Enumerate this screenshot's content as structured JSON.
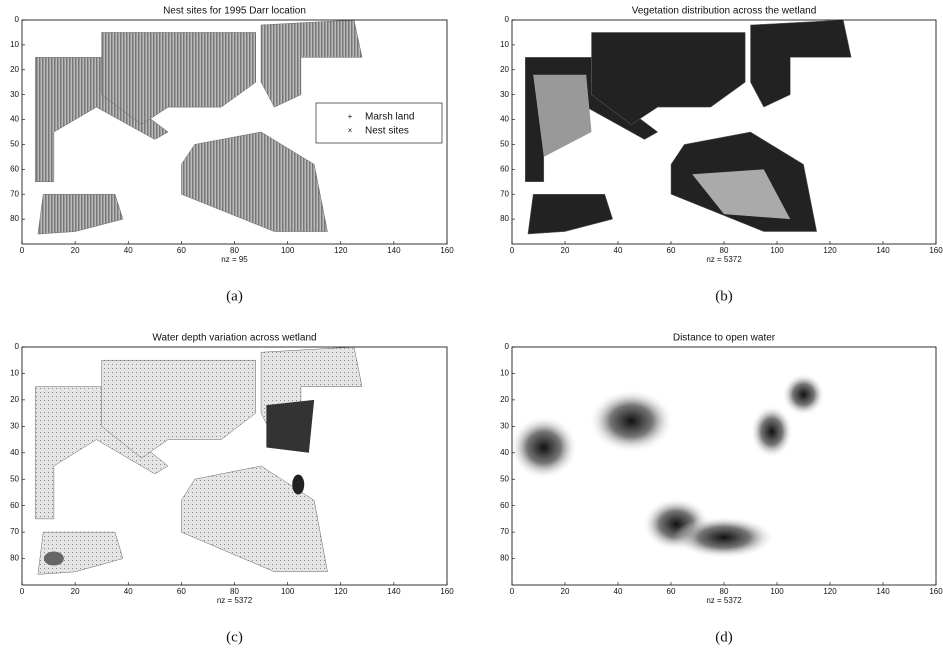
{
  "chart_data": [
    {
      "type": "spy",
      "title": "Nest sites for 1995 Darr location",
      "xlabel": "nz = 95",
      "caption": "(a)",
      "legend": [
        "Marsh land",
        "Nest sites"
      ],
      "xlim": [
        0,
        160
      ],
      "ylim": [
        0,
        90
      ],
      "y_reversed": true,
      "xticks": [
        0,
        20,
        40,
        60,
        80,
        100,
        120,
        140,
        160
      ],
      "yticks": [
        0,
        10,
        20,
        30,
        40,
        50,
        60,
        70,
        80
      ]
    },
    {
      "type": "spy",
      "title": "Vegetation distribution across the wetland",
      "xlabel": "nz = 5372",
      "caption": "(b)",
      "xlim": [
        0,
        160
      ],
      "ylim": [
        0,
        90
      ],
      "y_reversed": true,
      "xticks": [
        0,
        20,
        40,
        60,
        80,
        100,
        120,
        140,
        160
      ],
      "yticks": [
        0,
        10,
        20,
        30,
        40,
        50,
        60,
        70,
        80
      ]
    },
    {
      "type": "spy",
      "title": "Water depth variation across wetland",
      "xlabel": "nz = 5372",
      "caption": "(c)",
      "xlim": [
        0,
        160
      ],
      "ylim": [
        0,
        90
      ],
      "y_reversed": true,
      "xticks": [
        0,
        20,
        40,
        60,
        80,
        100,
        120,
        140,
        160
      ],
      "yticks": [
        0,
        10,
        20,
        30,
        40,
        50,
        60,
        70,
        80
      ]
    },
    {
      "type": "spy",
      "title": "Distance to open water",
      "xlabel": "nz = 5372",
      "caption": "(d)",
      "xlim": [
        0,
        160
      ],
      "ylim": [
        0,
        90
      ],
      "y_reversed": true,
      "xticks": [
        0,
        20,
        40,
        60,
        80,
        100,
        120,
        140,
        160
      ],
      "yticks": [
        0,
        10,
        20,
        30,
        40,
        50,
        60,
        70,
        80
      ]
    }
  ]
}
